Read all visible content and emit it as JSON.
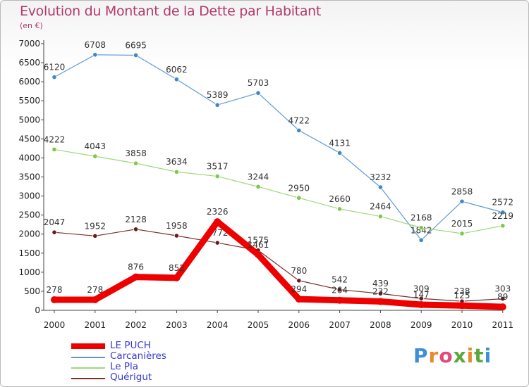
{
  "title": "Evolution du Montant de la Dette par Habitant",
  "subtitle": "(en €)",
  "brand": {
    "text": "Proxiti",
    "colors": [
      "#3d8fd6",
      "#e88a2c",
      "#e24a7a",
      "#5aa83c",
      "#e88a2c",
      "#5aa83c",
      "#3d8fd6"
    ]
  },
  "chart_data": {
    "type": "line",
    "x": [
      "2000",
      "2001",
      "2002",
      "2003",
      "2004",
      "2005",
      "2006",
      "2007",
      "2008",
      "2009",
      "2010",
      "2011"
    ],
    "ylim": [
      0,
      7000
    ],
    "yticks": [
      "0",
      "500",
      "1000",
      "1500",
      "2000",
      "2500",
      "3000",
      "3500",
      "4000",
      "4500",
      "5000",
      "5500",
      "6000",
      "6500",
      "7000"
    ],
    "grid": false,
    "legend": "bottom-left",
    "series": [
      {
        "name": "Carcanières",
        "color": "#5f9ad4",
        "marker": "#3f87c8",
        "values": [
          6120,
          6708,
          6695,
          6062,
          5389,
          5703,
          4722,
          4131,
          3232,
          1842,
          2858,
          2572
        ],
        "labels": [
          "6120",
          "6708",
          "6695",
          "6062",
          "5389",
          "5703",
          "4722",
          "4131",
          "3232",
          "1842",
          "2858",
          "2572"
        ]
      },
      {
        "name": "Le Pla",
        "color": "#9ed87a",
        "marker": "#7cc84a",
        "values": [
          4222,
          4043,
          3858,
          3634,
          3517,
          3244,
          2950,
          2660,
          2464,
          2168,
          2015,
          2219
        ],
        "labels": [
          "4222",
          "4043",
          "3858",
          "3634",
          "3517",
          "3244",
          "2950",
          "2660",
          "2464",
          "2168",
          "2015",
          "2219"
        ]
      },
      {
        "name": "Quérigut",
        "color": "#7a2f2f",
        "marker": "#6a1a1a",
        "values": [
          2047,
          1952,
          2128,
          1958,
          1772,
          1575,
          780,
          542,
          439,
          309,
          238,
          303
        ],
        "labels": [
          "2047",
          "1952",
          "2128",
          "1958",
          "1772",
          "1575",
          "780",
          "542",
          "439",
          "309",
          "238",
          "303"
        ]
      },
      {
        "name": "LE PUCH",
        "color": "#ee0000",
        "marker": "#ee0000",
        "values": [
          278,
          278,
          876,
          852,
          2326,
          1461,
          294,
          264,
          232,
          147,
          125,
          89
        ],
        "labels": [
          "278",
          "278",
          "876",
          "852",
          "2326",
          "1461",
          "294",
          "264",
          "232",
          "147",
          "125",
          "89"
        ]
      }
    ],
    "legend_order": [
      "LE PUCH",
      "Carcanières",
      "Le Pla",
      "Quérigut"
    ]
  }
}
